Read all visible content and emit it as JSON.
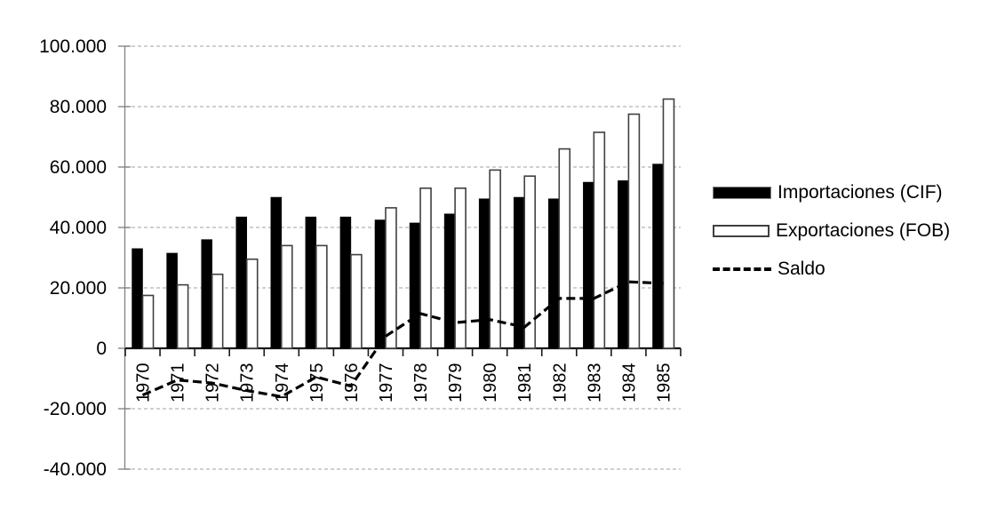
{
  "chart_data": {
    "type": "bar",
    "title": "",
    "xlabel": "",
    "ylabel": "",
    "categories": [
      "1970",
      "1971",
      "1972",
      "1973",
      "1974",
      "1975",
      "1976",
      "1977",
      "1978",
      "1979",
      "1980",
      "1981",
      "1982",
      "1983",
      "1984",
      "1985"
    ],
    "series": [
      {
        "name": "Importaciones (CIF)",
        "kind": "bar",
        "fill": "#000000",
        "stroke": "#000000",
        "values": [
          33000,
          31500,
          36000,
          43500,
          50000,
          43500,
          43500,
          42500,
          41500,
          44500,
          49500,
          50000,
          49500,
          55000,
          55500,
          61000
        ]
      },
      {
        "name": "Exportaciones (FOB)",
        "kind": "bar",
        "fill": "#ffffff",
        "stroke": "#404040",
        "values": [
          17500,
          21000,
          24500,
          29500,
          34000,
          34000,
          31000,
          46500,
          53000,
          53000,
          59000,
          57000,
          66000,
          71500,
          77500,
          82500
        ]
      },
      {
        "name": "Saldo",
        "kind": "line",
        "stroke": "#000000",
        "dashed": true,
        "values": [
          -15500,
          -10500,
          -11500,
          -14000,
          -16000,
          -9500,
          -12500,
          4000,
          11500,
          8500,
          9500,
          7000,
          16500,
          16500,
          22000,
          21500
        ]
      }
    ],
    "y_axis": {
      "min": -40000,
      "max": 100000,
      "tick_interval": 20000,
      "ticks": [
        {
          "value": 100000,
          "label": "100.000"
        },
        {
          "value": 80000,
          "label": "80.000"
        },
        {
          "value": 60000,
          "label": "60.000"
        },
        {
          "value": 40000,
          "label": "40.000"
        },
        {
          "value": 20000,
          "label": "20.000"
        },
        {
          "value": 0,
          "label": "0"
        },
        {
          "value": -20000,
          "label": "-20.000"
        },
        {
          "value": -40000,
          "label": "-40.000"
        }
      ]
    },
    "x_axis": {
      "label_rotation_degrees": -90
    },
    "grid": "horizontal-dashed",
    "legend_position": "right",
    "colors": {
      "grid": "#b3b3b3",
      "y_axis_line": "#808080",
      "x_axis_line": "#1a1a1a",
      "text": "#000000",
      "background": "#ffffff"
    }
  },
  "legend": {
    "items": [
      {
        "label": "Importaciones (CIF)",
        "swatch": "black-bar"
      },
      {
        "label": "Exportaciones (FOB)",
        "swatch": "white-bar"
      },
      {
        "label": "Saldo",
        "swatch": "dashed-line"
      }
    ]
  }
}
